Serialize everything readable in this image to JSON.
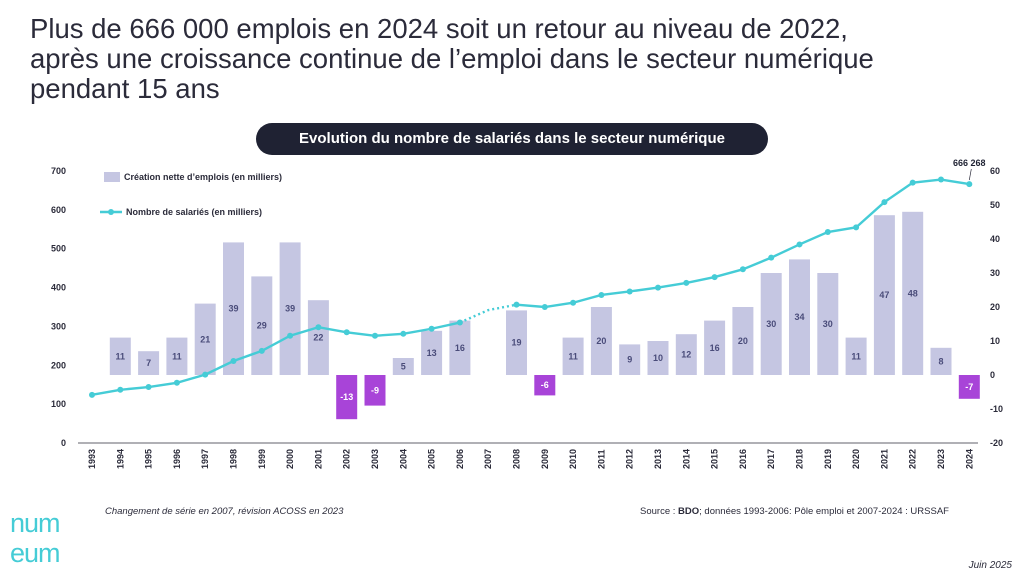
{
  "headline": {
    "line1": "Plus de 666 000 emplois en 2024 soit un retour au niveau de 2022,",
    "line2": "après une croissance continue de l’emploi dans le secteur numérique",
    "line3": "pendant 15 ans"
  },
  "footer": {
    "note": "Changement de série en 2007, révision ACOSS en 2023",
    "source_prefix": "Source : ",
    "source_bold": "BDO",
    "source_rest": "; données 1993-2006: Pôle emploi et 2007-2024 : URSSAF",
    "date": "Juin 2025",
    "logo_top": "num",
    "logo_bottom": "eum"
  },
  "colors": {
    "bar": "#c5c6e2",
    "bar_negative": "#a844d8",
    "line": "#45ccd6",
    "text": "#2b2b3a",
    "pill": "#1f2233"
  },
  "chart_data": {
    "type": "bar",
    "title": "Evolution du nombre de salariés dans le secteur numérique",
    "categories": [
      "1993",
      "1994",
      "1995",
      "1996",
      "1997",
      "1998",
      "1999",
      "2000",
      "2001",
      "2002",
      "2003",
      "2004",
      "2005",
      "2006",
      "2007",
      "2008",
      "2009",
      "2010",
      "2011",
      "2012",
      "2013",
      "2014",
      "2015",
      "2016",
      "2017",
      "2018",
      "2019",
      "2020",
      "2021",
      "2022",
      "2023",
      "2024"
    ],
    "ylim_left": [
      0,
      700
    ],
    "yticks_left": [
      0,
      100,
      200,
      300,
      400,
      500,
      600,
      700
    ],
    "ylim_right": [
      -20,
      60
    ],
    "yticks_right": [
      -20,
      -10,
      0,
      10,
      20,
      30,
      40,
      50,
      60
    ],
    "series": [
      {
        "name": "Création nette d’emplois (en milliers)",
        "type": "bar",
        "axis": "right",
        "values": [
          null,
          11,
          7,
          11,
          21,
          39,
          29,
          39,
          22,
          -13,
          -9,
          5,
          13,
          16,
          null,
          19,
          -6,
          11,
          20,
          9,
          10,
          12,
          16,
          20,
          30,
          34,
          30,
          11,
          47,
          48,
          8,
          -7
        ]
      },
      {
        "name": "Nombre de salariés (en milliers)",
        "type": "line",
        "axis": "left",
        "values": [
          124,
          137,
          144,
          155,
          176,
          211,
          237,
          276,
          298,
          285,
          276,
          281,
          294,
          310,
          342,
          356,
          350,
          361,
          381,
          390,
          400,
          412,
          427,
          447,
          477,
          511,
          543,
          555,
          620,
          670,
          678,
          666.268
        ],
        "dotted_segment": [
          "2006",
          "2008"
        ]
      }
    ],
    "annotations": [
      {
        "text": "666 268",
        "x": "2024"
      }
    ],
    "legend": "top-left"
  }
}
